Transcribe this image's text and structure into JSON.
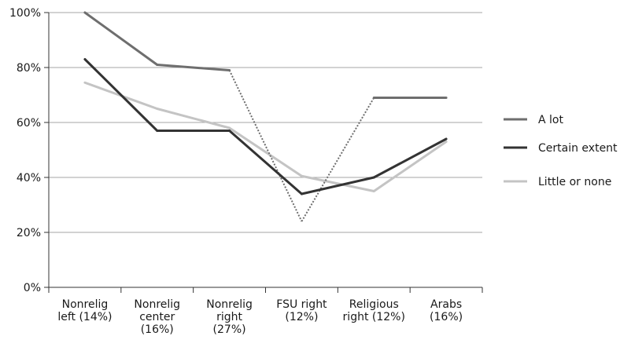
{
  "chart_data": {
    "type": "line",
    "title": "",
    "xlabel": "",
    "ylabel": "",
    "categories": [
      [
        "Nonrelig",
        "left (14%)"
      ],
      [
        "Nonrelig",
        "center",
        "(16%)"
      ],
      [
        "Nonrelig",
        "right",
        "(27%)"
      ],
      [
        "FSU right",
        "(12%)"
      ],
      [
        "Religious",
        "right (12%)"
      ],
      [
        "Arabs",
        "(16%)"
      ]
    ],
    "ylim": [
      0,
      100
    ],
    "yticks": [
      0,
      20,
      40,
      60,
      80,
      100
    ],
    "ytick_labels": [
      "0%",
      "20%",
      "40%",
      "60%",
      "80%",
      "100%"
    ],
    "grid": true,
    "legend_position": "right",
    "series": [
      {
        "name": "A lot",
        "values": [
          100,
          81,
          79,
          24,
          69,
          69
        ],
        "color": "#6e6e6e",
        "dotted_segments": [
          2,
          3
        ]
      },
      {
        "name": "Certain extent",
        "values": [
          83,
          57,
          57,
          34,
          40,
          54
        ],
        "color": "#333333",
        "dotted_segments": []
      },
      {
        "name": "Little or none",
        "values": [
          74.5,
          65,
          58,
          40.5,
          35,
          53
        ],
        "color": "#c4c4c4",
        "dotted_segments": []
      }
    ]
  }
}
